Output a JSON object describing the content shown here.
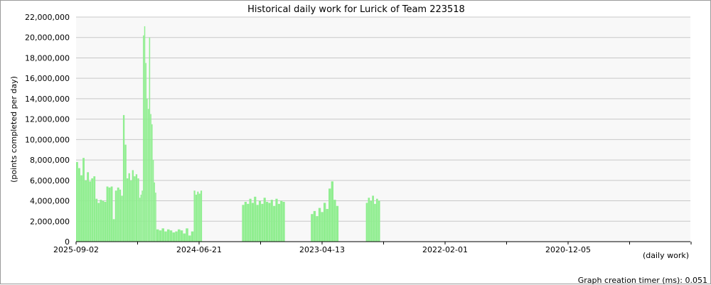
{
  "chart_data": {
    "type": "bar",
    "title": "Historical daily work for Lurick of Team 223518",
    "ylabel": "(points completed per day)",
    "xlabel": "(daily work)",
    "footer": "Graph creation timer (ms): 0.051",
    "ylim": [
      0,
      22000000
    ],
    "y_ticks": [
      "0",
      "2,000,000",
      "4,000,000",
      "6,000,000",
      "8,000,000",
      "10,000,000",
      "12,000,000",
      "14,000,000",
      "16,000,000",
      "18,000,000",
      "20,000,000",
      "22,000,000"
    ],
    "x_tick_labels": [
      "2025-09-02",
      "2024-06-21",
      "2023-04-13",
      "2022-02-01",
      "2020-12-05"
    ],
    "x_direction": "newest-left",
    "grid": true,
    "bar_color": "#90ee90",
    "segments": [
      {
        "from": "2025-09-02",
        "to": "2025-04-01",
        "values": [
          7800000,
          7200000,
          6500000,
          8200000,
          6000000,
          6800000,
          5900000,
          6200000,
          6400000,
          4200000,
          3800000,
          4100000,
          4000000,
          3900000,
          5400000,
          5300000,
          5400000,
          2200000,
          5000000,
          5300000
        ]
      },
      {
        "from": "2025-04-01",
        "to": "2025-01-20",
        "values": [
          5100000,
          4500000,
          12400000,
          9500000,
          6200000,
          6700000,
          6000000,
          7000000,
          6400000,
          6600000,
          6200000
        ]
      },
      {
        "from": "2025-01-20",
        "to": "2024-11-20",
        "values": [
          4300000,
          4600000,
          5000000,
          20200000,
          21100000,
          17500000,
          14000000,
          13000000,
          20000000,
          12500000,
          11500000,
          8000000,
          5800000,
          4800000
        ]
      },
      {
        "from": "2024-11-20",
        "to": "2024-07-10",
        "values": [
          1200000,
          1100000,
          1300000,
          1000000,
          1200000,
          1100000,
          900000,
          1000000,
          1200000,
          1100000,
          800000,
          1300000,
          600000,
          1000000
        ]
      },
      {
        "from": "2024-07-10",
        "to": "2024-06-10",
        "values": [
          5000000,
          4600000,
          4900000,
          4700000,
          5000000
        ]
      },
      {
        "from": "2024-01-20",
        "to": "2023-08-20",
        "values": [
          3600000,
          3900000,
          3700000,
          4200000,
          3800000,
          4400000,
          3600000,
          4000000,
          3700000,
          4300000,
          3900000,
          3800000,
          4100000,
          3500000,
          4200000,
          3700000,
          4000000,
          3900000
        ]
      },
      {
        "from": "2023-05-20",
        "to": "2023-02-10",
        "values": [
          2700000,
          3000000,
          2500000,
          3300000,
          2900000,
          3800000,
          3200000,
          5200000,
          5900000,
          4100000,
          3500000
        ]
      },
      {
        "from": "2022-11-05",
        "to": "2022-09-15",
        "values": [
          3800000,
          4300000,
          4000000,
          4500000,
          3700000,
          4200000,
          4000000
        ]
      }
    ]
  }
}
